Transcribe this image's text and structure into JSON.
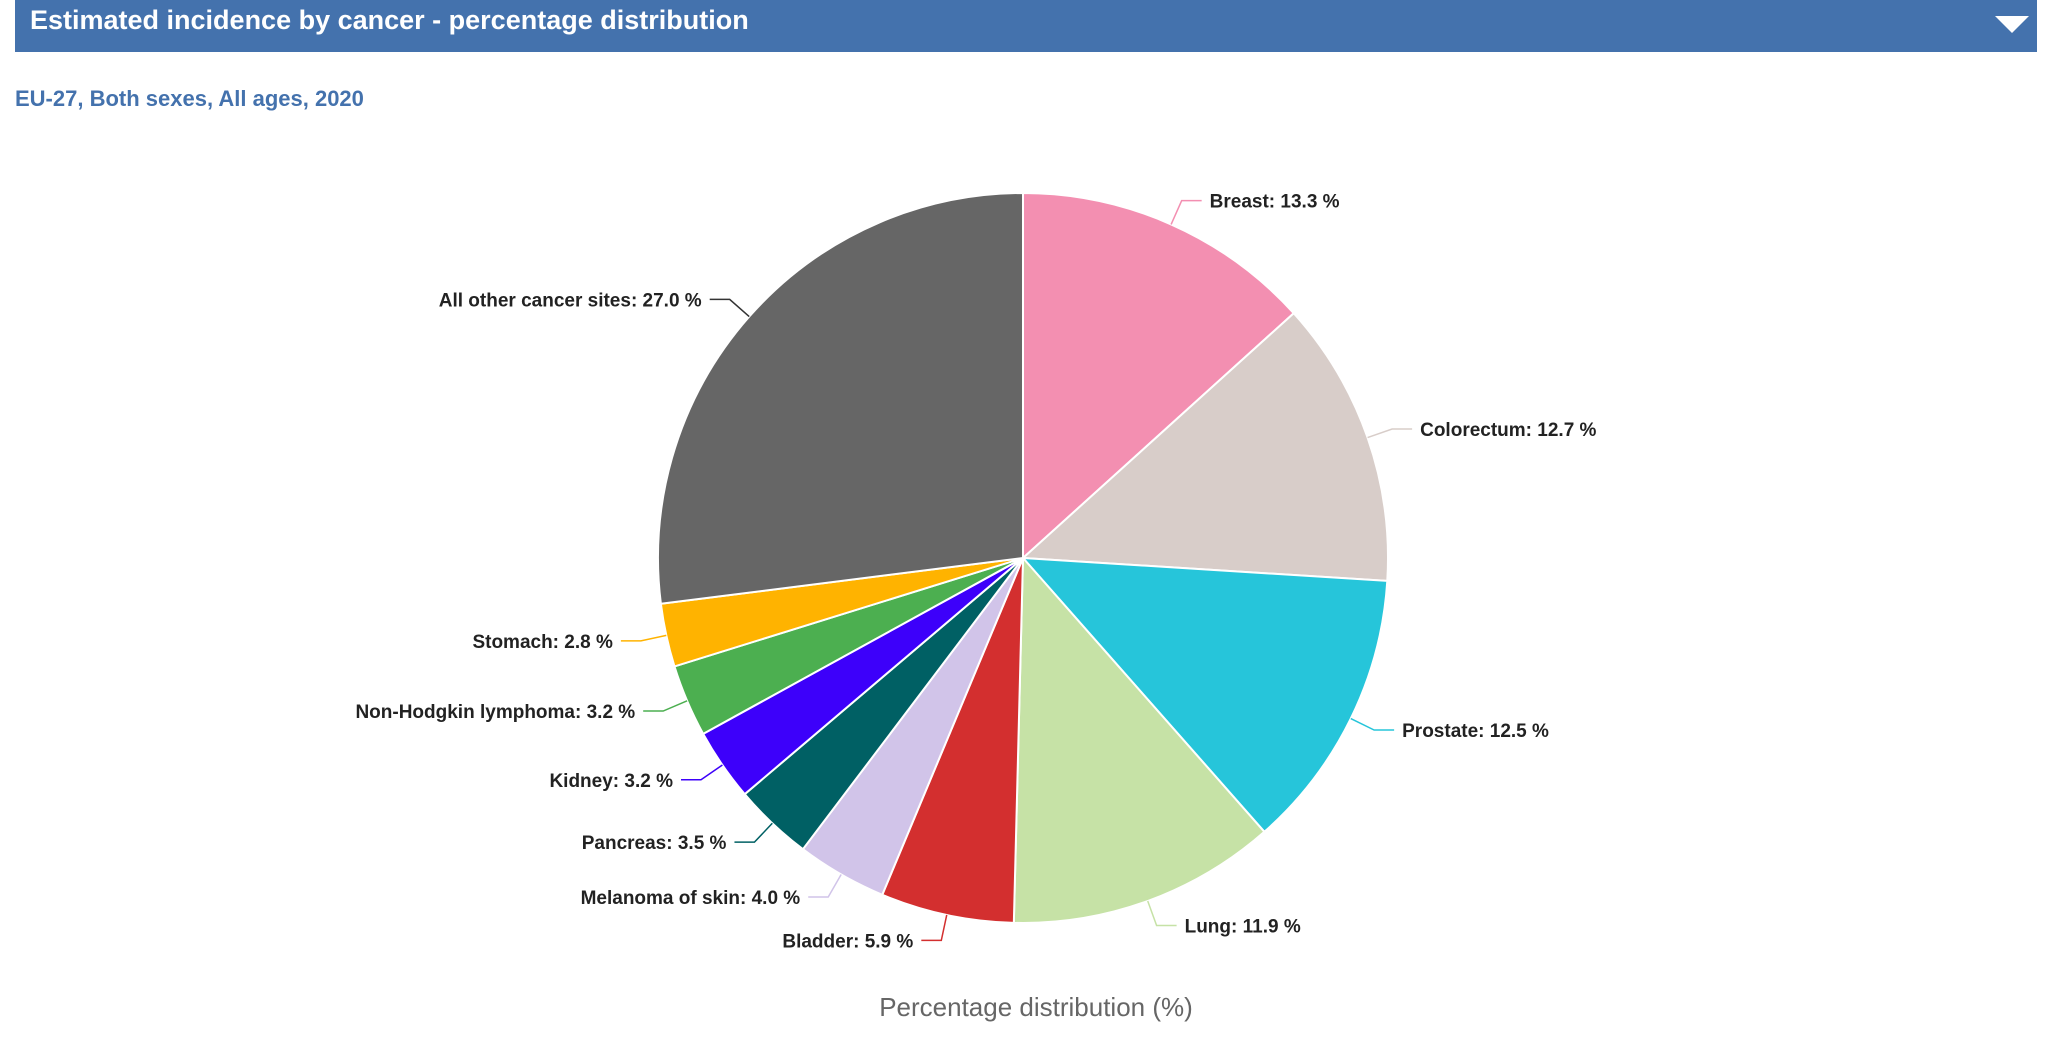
{
  "panel": {
    "title": "Estimated incidence by cancer - percentage distribution",
    "toggle_icon": "chevron-down-icon",
    "header_color": "#4472ad"
  },
  "subtitle": "EU-27, Both sexes, All ages, 2020",
  "chart_data": {
    "type": "pie",
    "title": "",
    "xlabel": "Percentage distribution (%)",
    "unit": "%",
    "slices": [
      {
        "label": "Breast",
        "value": 13.3,
        "display": "Breast: 13.3 %",
        "color": "#f38fb1"
      },
      {
        "label": "Colorectum",
        "value": 12.7,
        "display": "Colorectum: 12.7 %",
        "color": "#d8cdc9"
      },
      {
        "label": "Prostate",
        "value": 12.5,
        "display": "Prostate: 12.5 %",
        "color": "#26c5da"
      },
      {
        "label": "Lung",
        "value": 11.9,
        "display": "Lung: 11.9 %",
        "color": "#c6e2a6"
      },
      {
        "label": "Bladder",
        "value": 5.9,
        "display": "Bladder: 5.9 %",
        "color": "#d32f2f"
      },
      {
        "label": "Melanoma of skin",
        "value": 4.0,
        "display": "Melanoma of skin: 4.0 %",
        "color": "#d1c4e9"
      },
      {
        "label": "Pancreas",
        "value": 3.5,
        "display": "Pancreas: 3.5 %",
        "color": "#006064"
      },
      {
        "label": "Kidney",
        "value": 3.2,
        "display": "Kidney: 3.2 %",
        "color": "#3d00fa"
      },
      {
        "label": "Non-Hodgkin lymphoma",
        "value": 3.2,
        "display": "Non-Hodgkin lymphoma: 3.2 %",
        "color": "#4caf50"
      },
      {
        "label": "Stomach",
        "value": 2.8,
        "display": "Stomach: 2.8 %",
        "color": "#ffb300"
      },
      {
        "label": "All other cancer sites",
        "value": 27.0,
        "display": "All other cancer sites: 27.0 %",
        "color": "#666666"
      }
    ]
  }
}
